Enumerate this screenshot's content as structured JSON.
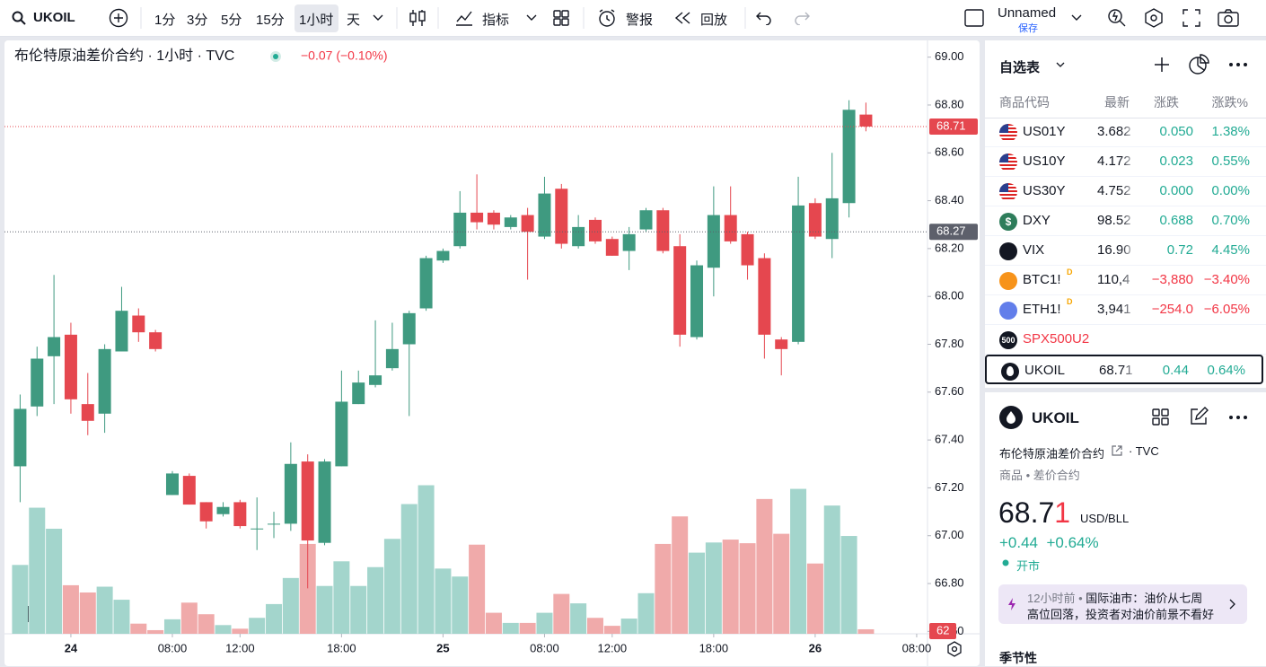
{
  "toolbar": {
    "symbol": "UKOIL",
    "intervals": [
      "1分",
      "3分",
      "5分",
      "15分",
      "1小时",
      "天"
    ],
    "selected_interval": 4,
    "indicators": "指标",
    "alerts": "警报",
    "replay": "回放",
    "layout_name": "Unnamed",
    "save": "保存"
  },
  "chart_data": {
    "type": "candlestick",
    "title": "布伦特原油差价合约 · 1小时 · TVC",
    "change": "−0.07 (−0.10%)",
    "open": [
      67.29,
      67.54,
      67.75,
      67.84,
      67.55,
      67.51,
      67.77,
      67.92,
      67.85,
      67.17,
      67.25,
      67.14,
      67.09,
      67.14,
      67.03,
      67.05,
      67.05,
      67.31,
      66.97,
      67.29,
      67.55,
      67.63,
      67.7,
      67.8,
      67.95,
      68.15,
      68.21,
      68.35,
      68.35,
      68.29,
      68.34,
      68.25,
      68.45,
      68.21,
      68.32,
      68.24,
      68.19,
      68.28,
      68.36,
      68.21,
      67.83,
      68.12,
      68.34,
      68.26,
      68.16,
      67.82,
      67.81,
      68.39,
      68.24,
      68.39,
      68.76
    ],
    "high": [
      67.59,
      67.79,
      68.09,
      67.89,
      67.68,
      67.8,
      68.04,
      67.95,
      67.86,
      67.27,
      67.26,
      67.14,
      67.14,
      67.15,
      67.16,
      67.1,
      67.39,
      67.34,
      67.32,
      67.69,
      67.69,
      67.9,
      67.89,
      67.94,
      68.17,
      68.2,
      68.44,
      68.51,
      68.36,
      68.34,
      68.37,
      68.5,
      68.47,
      68.34,
      68.33,
      68.25,
      68.29,
      68.37,
      68.37,
      68.26,
      68.15,
      68.46,
      68.46,
      68.27,
      68.18,
      67.83,
      68.5,
      68.41,
      68.6,
      68.82,
      68.81
    ],
    "low": [
      67.14,
      67.5,
      67.55,
      67.51,
      67.42,
      67.43,
      67.77,
      67.81,
      67.77,
      67.17,
      67.13,
      67.03,
      67.08,
      67.03,
      66.94,
      66.99,
      67.02,
      66.78,
      66.96,
      67.29,
      67.55,
      67.62,
      67.69,
      67.5,
      67.94,
      68.14,
      68.2,
      68.28,
      68.28,
      68.28,
      68.07,
      68.24,
      68.2,
      68.2,
      68.22,
      68.17,
      68.11,
      68.27,
      68.18,
      67.79,
      67.82,
      68.0,
      68.22,
      68.07,
      67.74,
      67.67,
      67.8,
      68.24,
      68.16,
      68.33,
      68.69
    ],
    "close": [
      67.53,
      67.74,
      67.83,
      67.57,
      67.48,
      67.78,
      67.94,
      67.85,
      67.78,
      67.26,
      67.13,
      67.06,
      67.12,
      67.04,
      67.03,
      67.05,
      67.3,
      66.98,
      67.31,
      67.56,
      67.64,
      67.67,
      67.78,
      67.93,
      68.16,
      68.19,
      68.35,
      68.31,
      68.3,
      68.33,
      68.27,
      68.43,
      68.22,
      68.29,
      68.23,
      68.17,
      68.26,
      68.36,
      68.19,
      67.84,
      68.13,
      68.34,
      68.23,
      68.13,
      67.84,
      67.78,
      68.38,
      68.25,
      68.41,
      68.78,
      68.71
    ],
    "volume": [
      950,
      1740,
      1450,
      670,
      570,
      650,
      470,
      140,
      50,
      200,
      430,
      270,
      120,
      70,
      220,
      410,
      770,
      1240,
      660,
      1000,
      660,
      920,
      1310,
      1790,
      2050,
      900,
      790,
      1230,
      290,
      150,
      150,
      290,
      550,
      420,
      220,
      110,
      210,
      560,
      1240,
      1620,
      1120,
      1260,
      1300,
      1250,
      1860,
      1380,
      2000,
      970,
      1770,
      1350,
      62
    ],
    "xticks": [
      {
        "value": 3,
        "label": "24"
      },
      {
        "value": 9,
        "label": "08:00"
      },
      {
        "value": 13,
        "label": "12:00"
      },
      {
        "value": 19,
        "label": "18:00"
      },
      {
        "value": 25,
        "label": "25"
      },
      {
        "value": 31,
        "label": "08:00"
      },
      {
        "value": 35,
        "label": "12:00"
      },
      {
        "value": 41,
        "label": "18:00"
      },
      {
        "value": 47,
        "label": "26"
      },
      {
        "value": 53,
        "label": "08:00"
      }
    ],
    "xlim": [
      -0.5,
      57
    ],
    "ylim": [
      66.59,
      69.07
    ],
    "yticks": [
      {
        "value": 69,
        "label": "69.00"
      },
      {
        "value": 68.8,
        "label": "68.80"
      },
      {
        "value": 68.6,
        "label": "68.60"
      },
      {
        "value": 68.4,
        "label": "68.40"
      },
      {
        "value": 68.2,
        "label": "68.20"
      },
      {
        "value": 68,
        "label": "68.00"
      },
      {
        "value": 67.8,
        "label": "67.80"
      },
      {
        "value": 67.6,
        "label": "67.60"
      },
      {
        "value": 67.4,
        "label": "67.40"
      },
      {
        "value": 67.2,
        "label": "67.20"
      },
      {
        "value": 67,
        "label": "67.00"
      },
      {
        "value": 66.8,
        "label": "66.80"
      },
      {
        "value": 66.6,
        "label": "66.60"
      }
    ],
    "volume_ylim": [
      0,
      2800
    ],
    "price_lines": [
      {
        "value": 68.71,
        "color": "#e5474f"
      },
      {
        "value": 68.27,
        "color": "#5d606b"
      }
    ],
    "up_color": "#3f9a80",
    "down_color": "#e5474f",
    "volume_up_color": "#a3d5cc",
    "volume_down_color": "#f0aaaa",
    "grid": false
  },
  "watchlist": {
    "title": "自选表",
    "columns": [
      "商品代码",
      "最新",
      "涨跌",
      "涨跌%"
    ],
    "rows": [
      {
        "symbol": "US01Y",
        "last": "3.682",
        "change": "0.050",
        "change_pct": "1.38%"
      },
      {
        "symbol": "US10Y",
        "last": "4.172",
        "change": "0.023",
        "change_pct": "0.55%"
      },
      {
        "symbol": "US30Y",
        "last": "4.752",
        "change": "0.000",
        "change_pct": "0.00%"
      },
      {
        "symbol": "DXY",
        "badge": "$",
        "last": "98.52",
        "change": "0.688",
        "change_pct": "0.70%"
      },
      {
        "symbol": "VIX",
        "last": "16.90",
        "change": "0.72",
        "change_pct": "4.45%"
      },
      {
        "symbol": "BTC1!",
        "flag": "D",
        "last": "110,4",
        "change": "−3,880",
        "change_pct": "−3.40%"
      },
      {
        "symbol": "ETH1!",
        "flag": "D",
        "last": "3,941",
        "change": "−254.0",
        "change_pct": "−6.05%"
      },
      {
        "symbol": "SPX500U2",
        "badge": "500"
      },
      {
        "symbol": "UKOIL",
        "last": "68.71",
        "change": "0.44",
        "change_pct": "0.64%"
      }
    ],
    "selected": 8
  },
  "details": {
    "symbol": "UKOIL",
    "name": "布伦特原油差价合约",
    "exchange": "· TVC",
    "category": "商品 • 差价合约",
    "price_main": "68.7",
    "price_last_digit": "1",
    "currency": "USD/BLL",
    "change": "+0.44",
    "change_pct": "+0.64%",
    "status": "开市",
    "news_time": "12小时前 •",
    "news_line1": "国际油市：油价从七周",
    "news_line2": "高位回落，投资者对油价前景不看好",
    "section": "季节性"
  }
}
